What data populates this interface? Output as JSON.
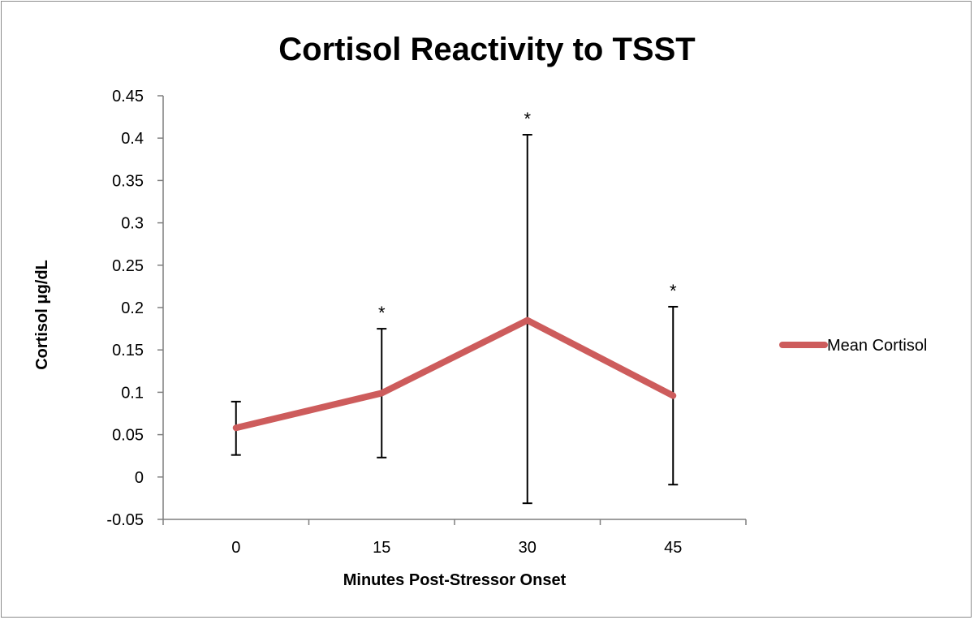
{
  "chart_data": {
    "type": "line",
    "title": "Cortisol Reactivity to TSST",
    "xlabel": "Minutes Post-Stressor Onset",
    "ylabel": "Cortisol μg/dL",
    "categories": [
      "0",
      "15",
      "30",
      "45"
    ],
    "series": [
      {
        "name": "Mean Cortisol",
        "color": "#cd5c5c",
        "values": [
          0.058,
          0.099,
          0.185,
          0.096
        ],
        "error_upper": [
          0.089,
          0.175,
          0.404,
          0.201
        ],
        "error_lower": [
          0.026,
          0.023,
          -0.031,
          -0.009
        ],
        "annotations": [
          "",
          "*",
          "*",
          "*"
        ]
      }
    ],
    "ylim": [
      -0.05,
      0.45
    ],
    "yticks": [
      "-0.05",
      "0",
      "0.05",
      "0.1",
      "0.15",
      "0.2",
      "0.25",
      "0.3",
      "0.35",
      "0.4",
      "0.45"
    ],
    "grid": false,
    "legend": "right"
  }
}
